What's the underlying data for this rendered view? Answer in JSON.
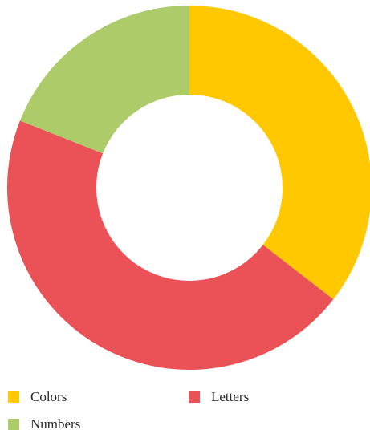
{
  "chart_data": {
    "type": "pie",
    "donut": true,
    "categories": [
      "Colors",
      "Letters",
      "Numbers"
    ],
    "values": [
      35.5,
      45.5,
      19.0
    ],
    "colors": [
      "#FFC800",
      "#EB5257",
      "#AECB6A"
    ],
    "legend_position": "bottom"
  }
}
